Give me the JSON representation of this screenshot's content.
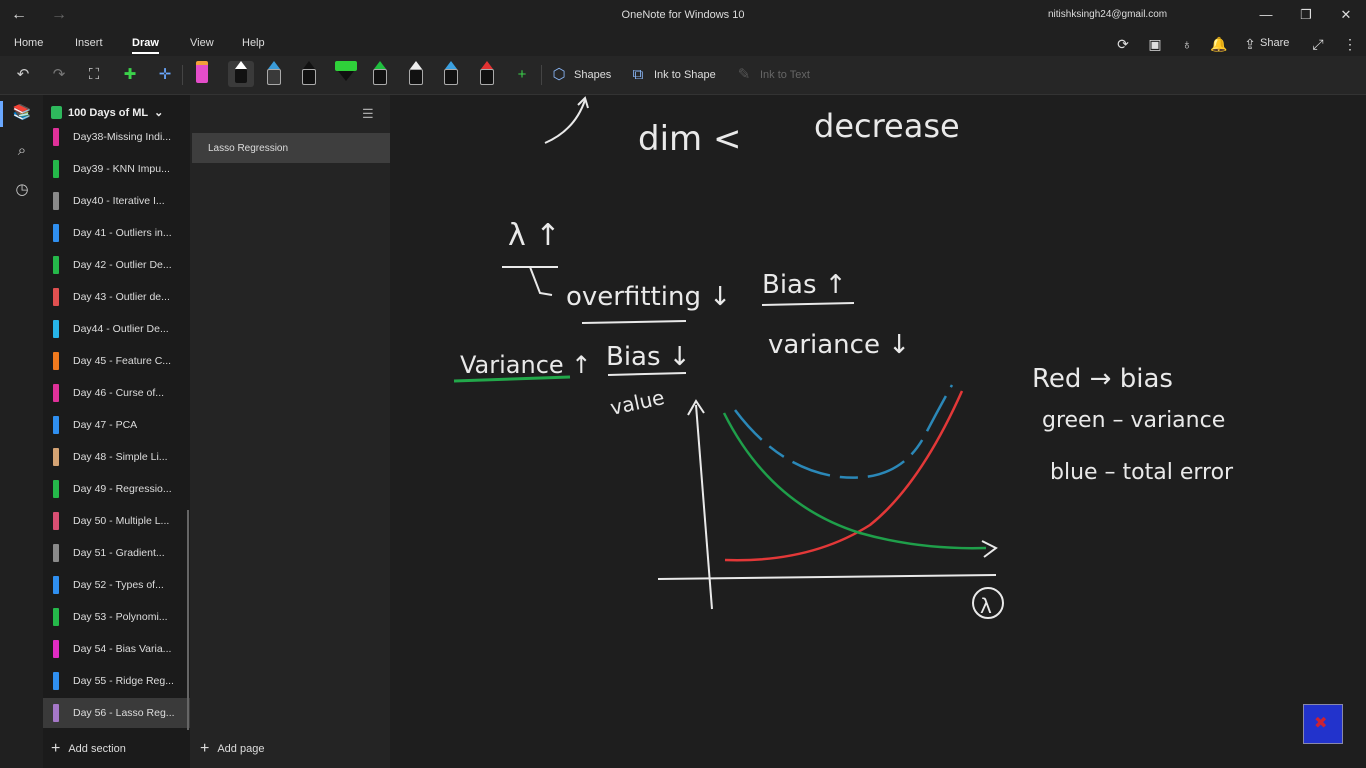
{
  "window": {
    "title": "OneNote for Windows 10",
    "user": "nitishksingh24@gmail.com"
  },
  "menu": [
    "Home",
    "Insert",
    "Draw",
    "View",
    "Help"
  ],
  "active_menu": "Draw",
  "header_actions": {
    "share_label": "Share"
  },
  "toolbar": {
    "shapes_label": "Shapes",
    "ink_to_shape_label": "Ink to Shape",
    "ink_to_text_label": "Ink to Text",
    "pen_colors": [
      "#f2a13a",
      "#e44dc9",
      "#111111",
      "#3a9bd8",
      "#111111",
      "#2fd13a",
      "#1fbf3f",
      "#111111",
      "#3aa0e0",
      "#e23232"
    ]
  },
  "notebook": {
    "title": "100 Days of ML",
    "sections": [
      {
        "label": "Day38-Missing Indi...",
        "color": "#e0319a"
      },
      {
        "label": "Day39 - KNN Impu...",
        "color": "#25b84a"
      },
      {
        "label": "Day40 - Iterative I...",
        "color": "#8a8a8a"
      },
      {
        "label": "Day 41 - Outliers in...",
        "color": "#2f8ff0"
      },
      {
        "label": "Day 42 - Outlier De...",
        "color": "#25b84a"
      },
      {
        "label": "Day 43 - Outlier de...",
        "color": "#e05050"
      },
      {
        "label": "Day44 - Outlier De...",
        "color": "#27b4e8"
      },
      {
        "label": "Day 45 - Feature C...",
        "color": "#f07a1e"
      },
      {
        "label": "Day 46 - Curse of...",
        "color": "#e0319a"
      },
      {
        "label": "Day 47 - PCA",
        "color": "#2f8ff0"
      },
      {
        "label": "Day 48 - Simple Li...",
        "color": "#d4a374"
      },
      {
        "label": "Day 49 - Regressio...",
        "color": "#25b84a"
      },
      {
        "label": "Day 50 - Multiple L...",
        "color": "#d94f73"
      },
      {
        "label": "Day 51 - Gradient...",
        "color": "#8a8a8a"
      },
      {
        "label": "Day 52 - Types of...",
        "color": "#2f8ff0"
      },
      {
        "label": "Day 53 - Polynomi...",
        "color": "#25b84a"
      },
      {
        "label": "Day 54 - Bias Varia...",
        "color": "#e02cc4"
      },
      {
        "label": "Day 55 - Ridge Reg...",
        "color": "#2f8ff0"
      },
      {
        "label": "Day 56 - Lasso Reg...",
        "color": "#a678c9"
      }
    ],
    "add_section_label": "Add section"
  },
  "pages": {
    "items": [
      "Lasso Regression"
    ],
    "add_page_label": "Add page"
  },
  "note_ink": {
    "dim": "dim <",
    "decrease": "decrease",
    "lambda": "λ ↑",
    "overfitting": "overfitting ↓",
    "bias_up": "Bias ↑",
    "variance_down": "variance ↓",
    "variance_up": "Variance ↑",
    "bias_down": "Bias ↓",
    "value": "value",
    "legend_red": "Red → bias",
    "legend_green": "green – variance",
    "legend_blue": "blue – total error",
    "axis_lambda": "λ"
  }
}
